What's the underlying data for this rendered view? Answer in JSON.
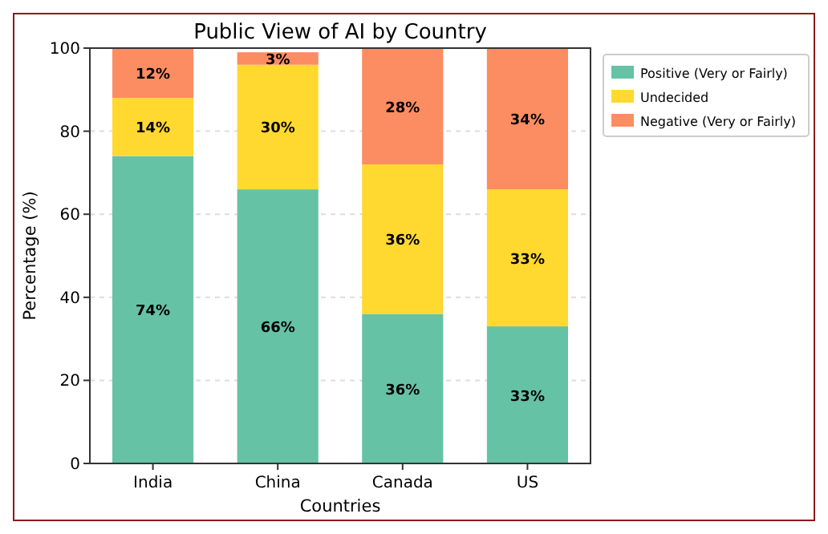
{
  "chart_data": {
    "type": "bar",
    "title": "Public View of AI by Country",
    "xlabel": "Countries",
    "ylabel": "Percentage (%)",
    "categories": [
      "India",
      "China",
      "Canada",
      "US"
    ],
    "stacked": true,
    "series": [
      {
        "name": "Positive (Very or Fairly)",
        "color": "#66c2a5",
        "values": [
          74,
          66,
          36,
          33
        ],
        "value_labels": [
          "74%",
          "66%",
          "36%",
          "33%"
        ]
      },
      {
        "name": "Undecided",
        "color": "#ffd92f",
        "values": [
          14,
          30,
          36,
          33
        ],
        "value_labels": [
          "14%",
          "30%",
          "36%",
          "33%"
        ]
      },
      {
        "name": "Negative (Very or Fairly)",
        "color": "#fc8d62",
        "values": [
          12,
          3,
          28,
          34
        ],
        "value_labels": [
          "12%",
          "3%",
          "28%",
          "34%"
        ]
      }
    ],
    "ylim": [
      0,
      100
    ],
    "yticks": [
      0,
      20,
      40,
      60,
      80,
      100
    ],
    "grid": "y",
    "legend": "right"
  }
}
